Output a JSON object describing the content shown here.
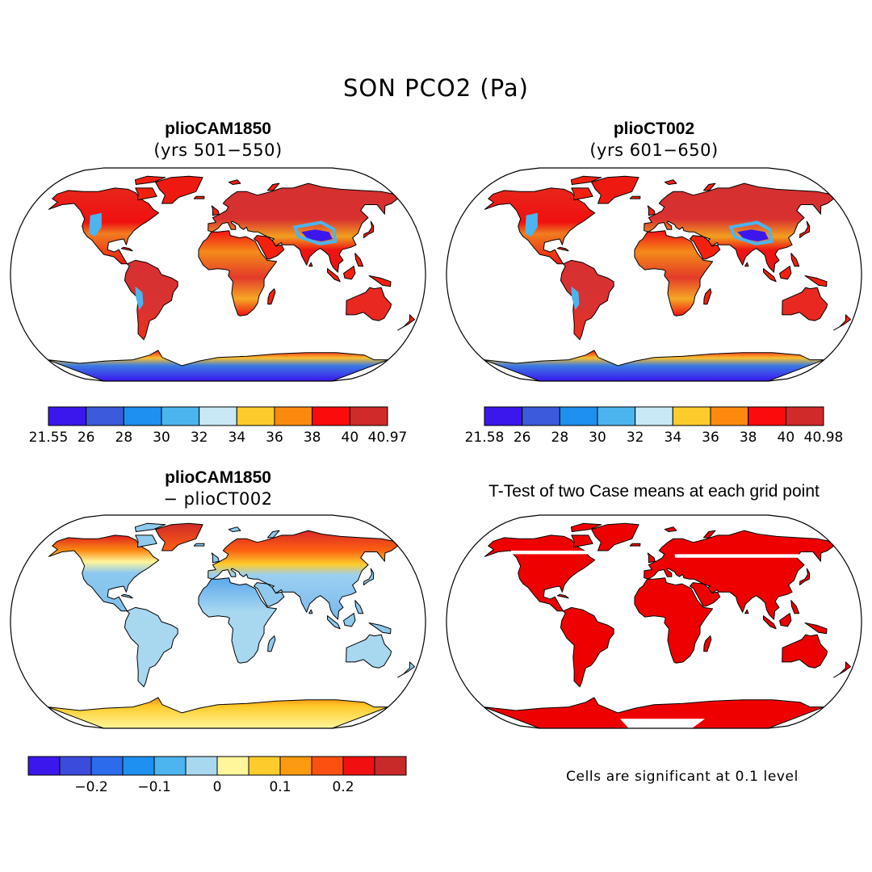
{
  "title": "SON PCO2 (Pa)",
  "panels": [
    {
      "title": "plioCAM1850",
      "subtitle": "(yrs 501−550)",
      "scheme": "abs"
    },
    {
      "title": "plioCT002",
      "subtitle": "(yrs 601−650)",
      "scheme": "abs"
    },
    {
      "title": "plioCAM1850",
      "subtitle": "− plioCT002",
      "scheme": "diff"
    },
    {
      "title": "T-Test of two Case means at each grid point",
      "scheme": "sig"
    }
  ],
  "colorbars": [
    {
      "colors": [
        "#3b17ee",
        "#3b5bdc",
        "#1e90ef",
        "#4cb4ee",
        "#c9e8f6",
        "#fdcc2c",
        "#fc8a0e",
        "#fb0b0b",
        "#d12a2a"
      ],
      "labels": [
        "21.55",
        "26",
        "28",
        "30",
        "32",
        "34",
        "36",
        "38",
        "40",
        "40.97"
      ]
    },
    {
      "colors": [
        "#3b17ee",
        "#3b5bdc",
        "#1e90ef",
        "#4cb4ee",
        "#c9e8f6",
        "#fdcc2c",
        "#fc8a0e",
        "#fb0b0b",
        "#d12a2a"
      ],
      "labels": [
        "21.58",
        "26",
        "28",
        "30",
        "32",
        "34",
        "36",
        "38",
        "40",
        "40.98"
      ]
    },
    {
      "colors": [
        "#3b17ee",
        "#3b4bdc",
        "#2b6bec",
        "#1e90ef",
        "#4cb4ee",
        "#a8d8f0",
        "#fff59a",
        "#fdcc2c",
        "#fc9a10",
        "#fc5010",
        "#f01010",
        "#c82a2a"
      ],
      "labels": [
        "−0.2",
        "−0.1",
        "0",
        "0.1",
        "0.2"
      ]
    }
  ],
  "note": "Cells are significant at 0.1 level",
  "colors": {
    "ocean": "#ffffff",
    "coast": "#000000",
    "sig_fill": "#ee0000"
  }
}
